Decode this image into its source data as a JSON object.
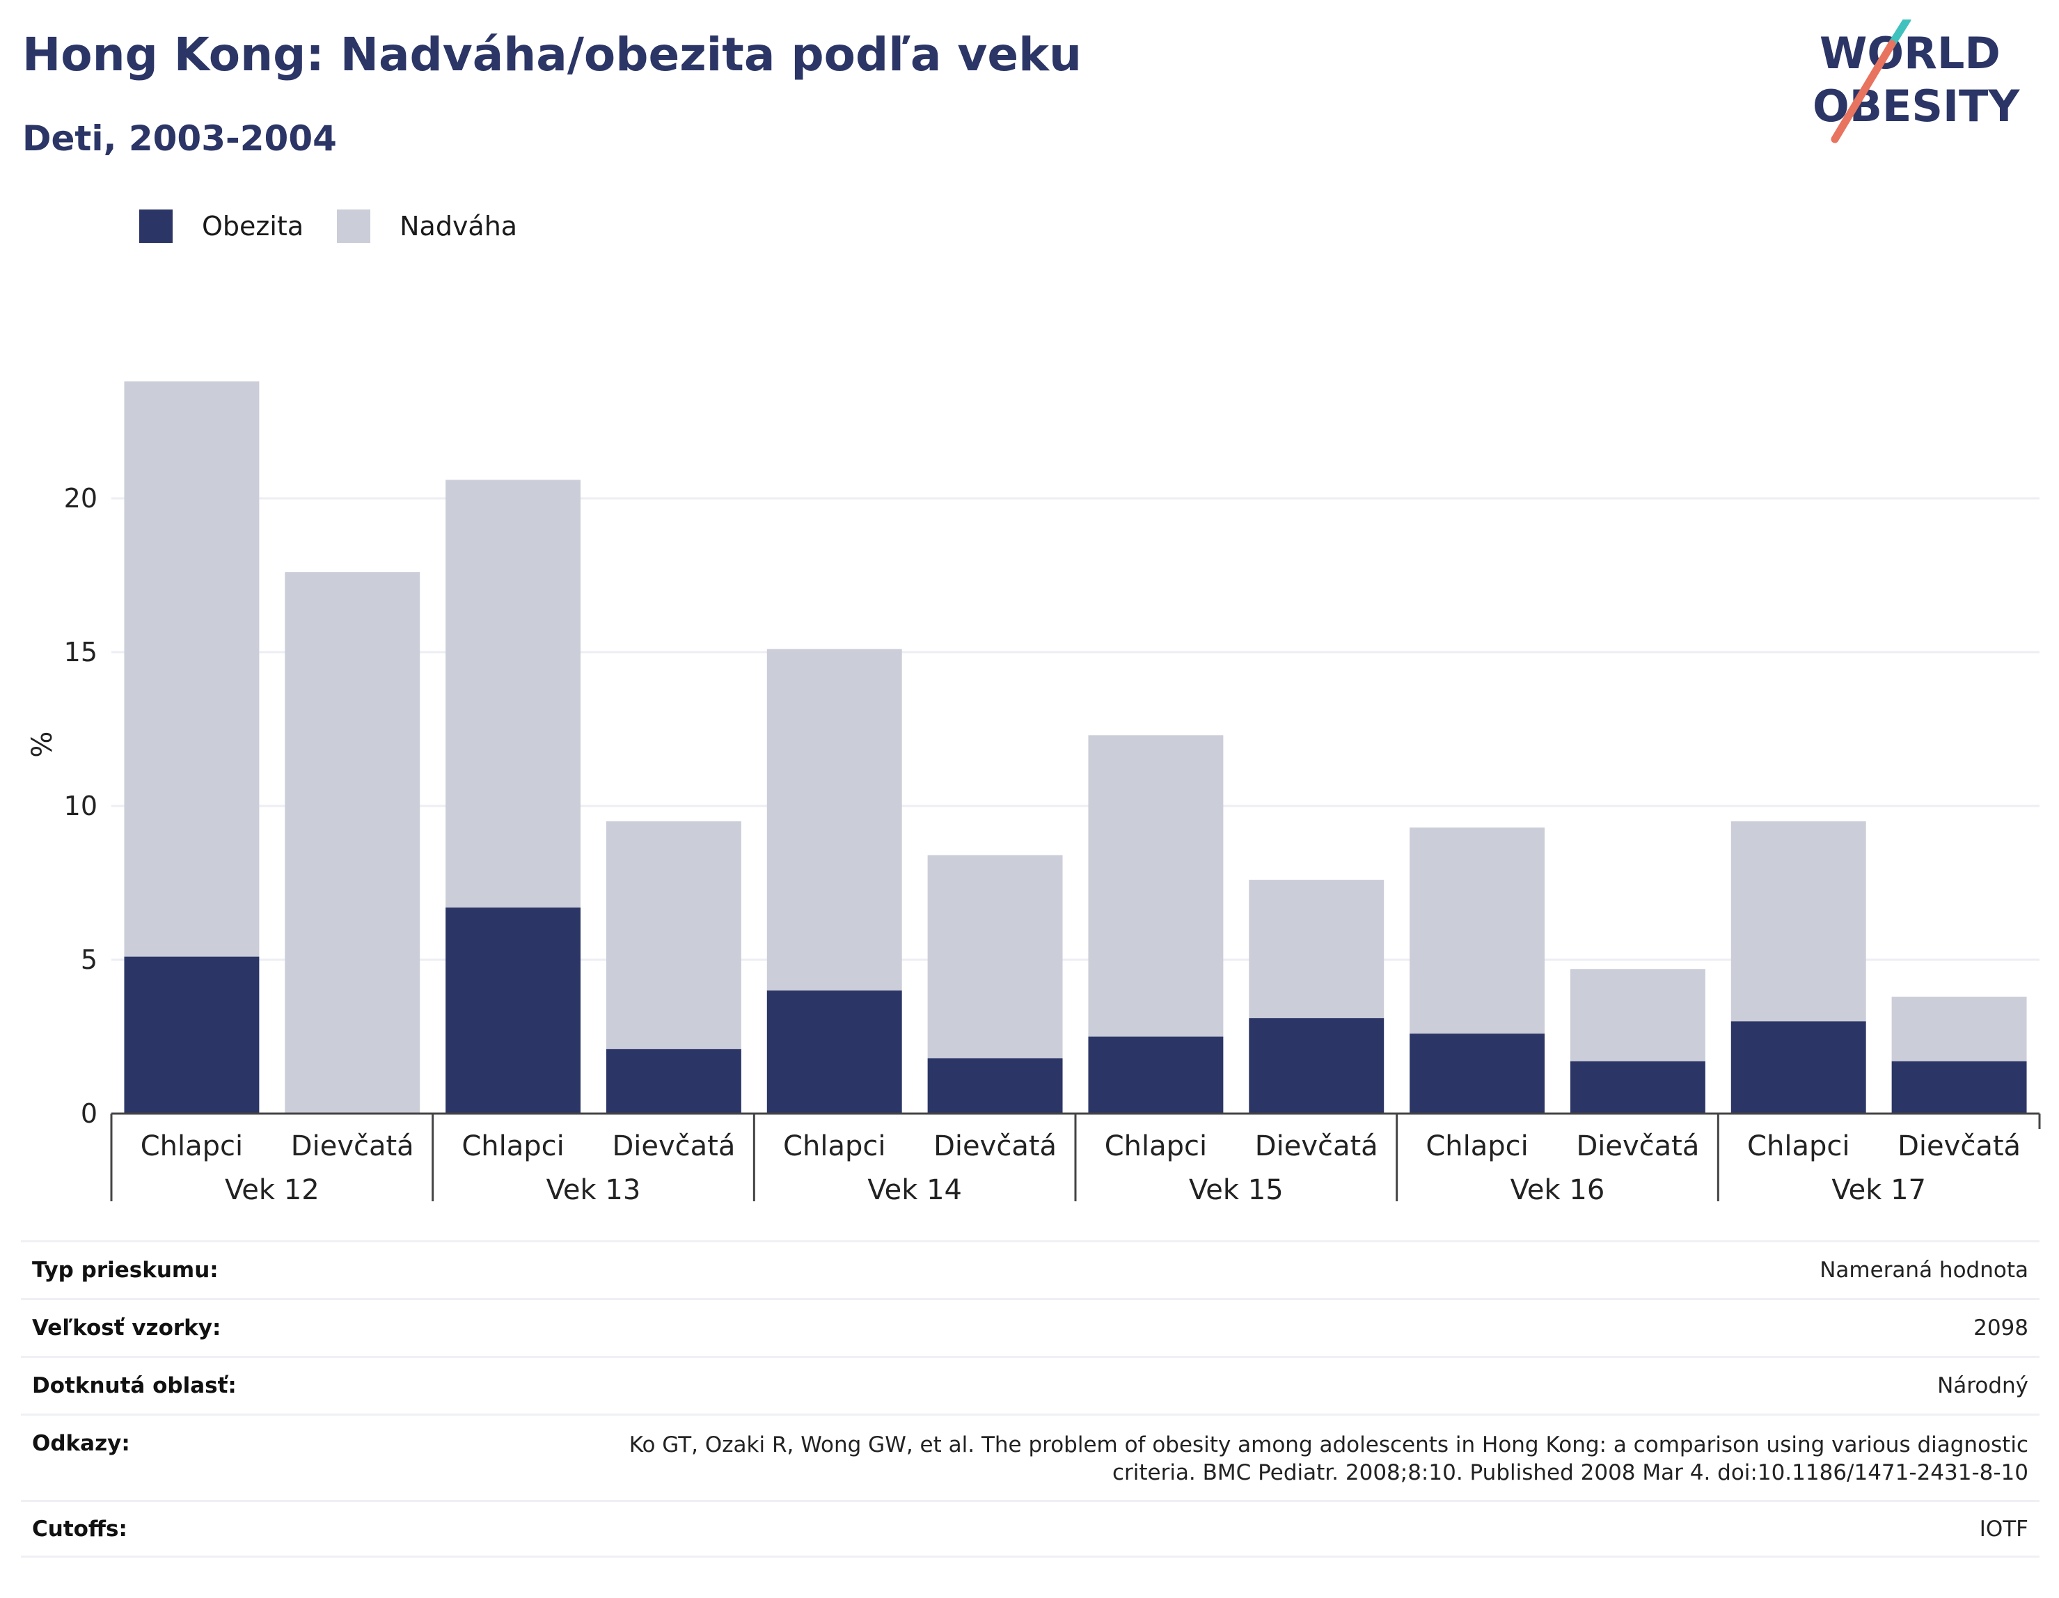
{
  "header": {
    "title": "Hong Kong: Nadváha/obezita podľa veku",
    "subtitle": "Deti, 2003-2004"
  },
  "logo": {
    "line1": "WORLD",
    "line2": "OBESITY"
  },
  "colors": {
    "obesity": "#2b3566",
    "overweight": "#cbcdd8",
    "title": "#2b3566",
    "grid": "#eceef4",
    "logo_teal": "#3fc1be",
    "logo_coral": "#e8735f"
  },
  "legend": [
    {
      "label": "Obezita",
      "color": "#2b3566"
    },
    {
      "label": "Nadváha",
      "color": "#cbcdd8"
    }
  ],
  "chart_data": {
    "type": "bar",
    "stacked": true,
    "ylabel": "%",
    "xlabel": "",
    "ylim": [
      0,
      24
    ],
    "yticks": [
      0,
      5,
      10,
      15,
      20
    ],
    "grid": true,
    "legend_position": "top-left",
    "groups": [
      {
        "label": "Vek 12",
        "categories": [
          "Chlapci",
          "Dievčatá"
        ]
      },
      {
        "label": "Vek 13",
        "categories": [
          "Chlapci",
          "Dievčatá"
        ]
      },
      {
        "label": "Vek 14",
        "categories": [
          "Chlapci",
          "Dievčatá"
        ]
      },
      {
        "label": "Vek 15",
        "categories": [
          "Chlapci",
          "Dievčatá"
        ]
      },
      {
        "label": "Vek 16",
        "categories": [
          "Chlapci",
          "Dievčatá"
        ]
      },
      {
        "label": "Vek 17",
        "categories": [
          "Chlapci",
          "Dievčatá"
        ]
      }
    ],
    "series": [
      {
        "name": "Obezita",
        "values": [
          5.1,
          0,
          6.7,
          2.1,
          4.0,
          1.8,
          2.5,
          3.1,
          2.6,
          1.7,
          3.0,
          1.7
        ]
      },
      {
        "name": "Nadváha",
        "values": [
          18.7,
          17.6,
          13.9,
          7.4,
          11.1,
          6.6,
          9.8,
          4.5,
          6.7,
          3.0,
          6.5,
          2.1
        ]
      }
    ]
  },
  "info": [
    {
      "label": "Typ prieskumu:",
      "value": "Nameraná hodnota"
    },
    {
      "label": "Veľkosť vzorky:",
      "value": "2098"
    },
    {
      "label": "Dotknutá oblasť:",
      "value": "Národný"
    },
    {
      "label": "Odkazy:",
      "value": "Ko GT, Ozaki R, Wong GW, et al. The problem of obesity among adolescents in Hong Kong: a comparison using various diagnostic criteria. BMC Pediatr. 2008;8:10. Published 2008 Mar 4. doi:10.1186/1471-2431-8-10"
    },
    {
      "label": "Cutoffs:",
      "value": "IOTF"
    }
  ]
}
